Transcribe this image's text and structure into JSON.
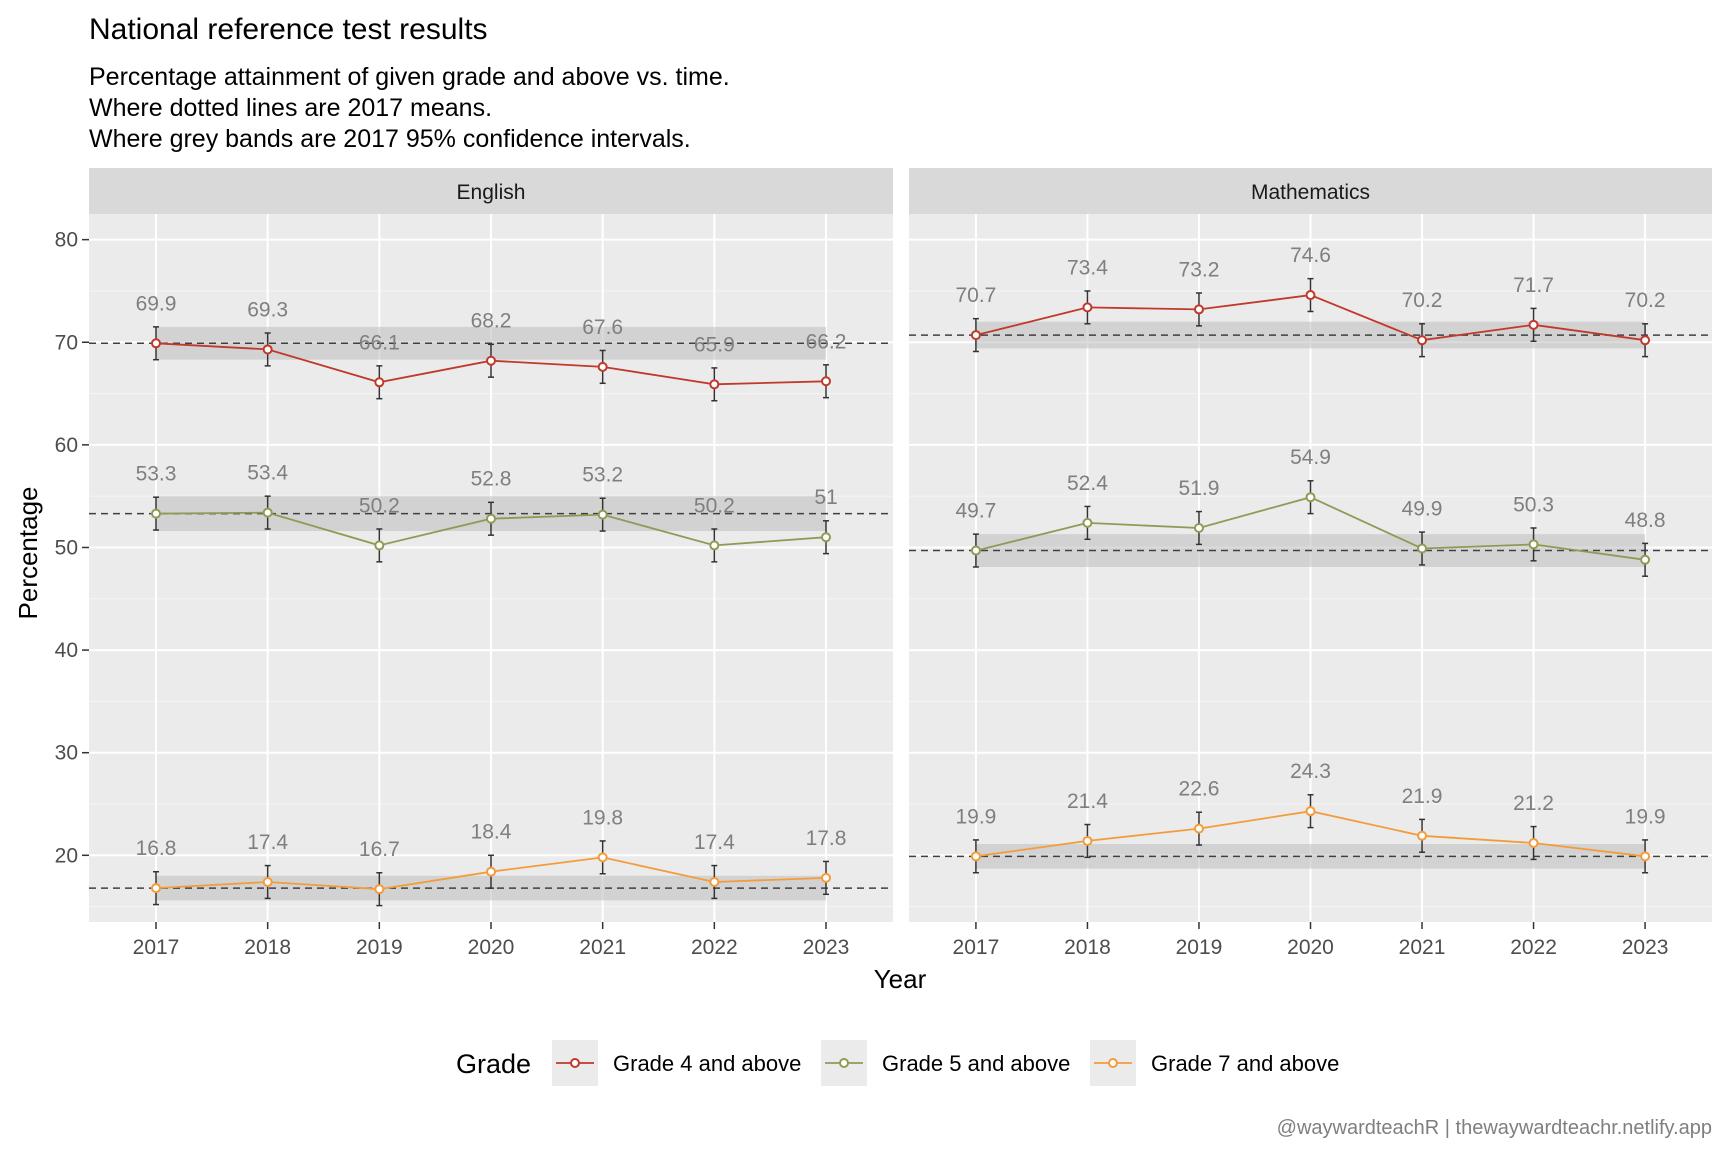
{
  "title": "National reference test results",
  "subtitle": [
    "Percentage attainment of given grade and above vs. time.",
    "Where dotted lines are 2017 means.",
    "Where grey bands are 2017 95% confidence intervals."
  ],
  "caption": "@waywardteachR | thewaywardteachr.netlify.app",
  "colors": {
    "Grade 4 and above": "#c0392b",
    "Grade 5 and above": "#8f9b55",
    "Grade 7 and above": "#f39c3c"
  },
  "legend_title": "Grade",
  "chart_data": {
    "type": "line",
    "xlabel": "Year",
    "ylabel": "Percentage",
    "x": [
      2017,
      2018,
      2019,
      2020,
      2021,
      2022,
      2023
    ],
    "yticks": [
      20,
      30,
      40,
      50,
      60,
      70,
      80
    ],
    "ylim": [
      13.5,
      82.5
    ],
    "grid": true,
    "legend_position": "bottom",
    "facets": [
      {
        "name": "English",
        "series": [
          {
            "name": "Grade 4 and above",
            "values": [
              69.9,
              69.3,
              66.1,
              68.2,
              67.6,
              65.9,
              66.2
            ],
            "ci_2017": [
              68.3,
              71.5
            ]
          },
          {
            "name": "Grade 5 and above",
            "values": [
              53.3,
              53.4,
              50.2,
              52.8,
              53.2,
              50.2,
              51
            ],
            "ci_2017": [
              51.6,
              55.0
            ]
          },
          {
            "name": "Grade 7 and above",
            "values": [
              16.8,
              17.4,
              16.7,
              18.4,
              19.8,
              17.4,
              17.8
            ],
            "ci_2017": [
              15.6,
              18.0
            ]
          }
        ]
      },
      {
        "name": "Mathematics",
        "series": [
          {
            "name": "Grade 4 and above",
            "values": [
              70.7,
              73.4,
              73.2,
              74.6,
              70.2,
              71.7,
              70.2
            ],
            "ci_2017": [
              69.4,
              72.0
            ]
          },
          {
            "name": "Grade 5 and above",
            "values": [
              49.7,
              52.4,
              51.9,
              54.9,
              49.9,
              50.3,
              48.8
            ],
            "ci_2017": [
              48.1,
              51.3
            ]
          },
          {
            "name": "Grade 7 and above",
            "values": [
              19.9,
              21.4,
              22.6,
              24.3,
              21.9,
              21.2,
              19.9
            ],
            "ci_2017": [
              18.7,
              21.1
            ]
          }
        ]
      }
    ]
  }
}
